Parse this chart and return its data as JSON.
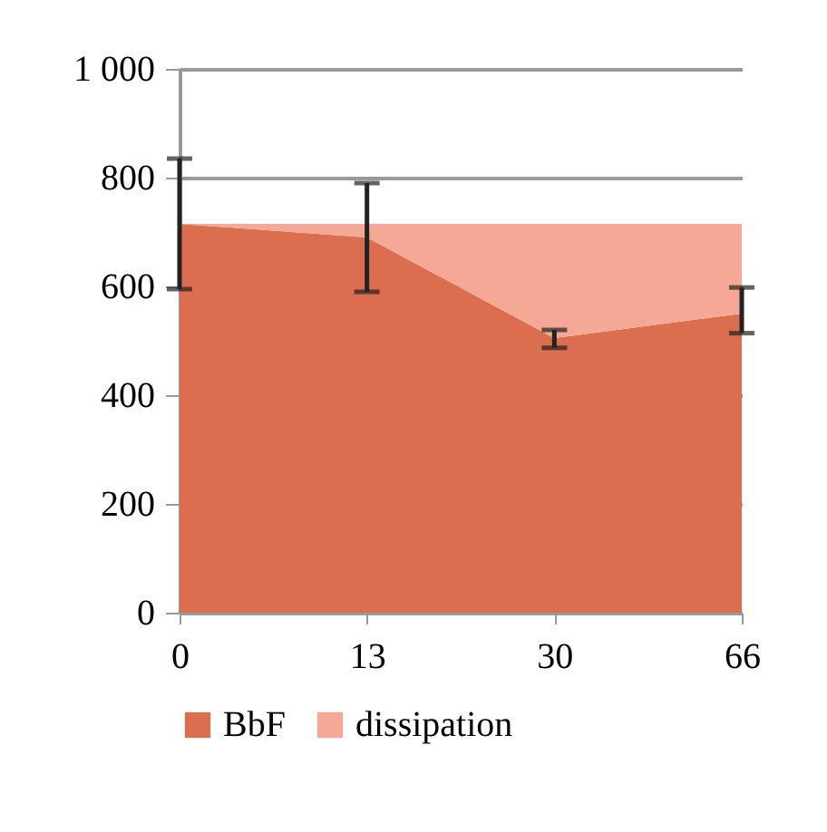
{
  "chart_data": {
    "type": "area",
    "stacked": true,
    "categories": [
      "0",
      "13",
      "30",
      "66"
    ],
    "series": [
      {
        "name": "BbF",
        "color": "#db6e4f",
        "values": [
          715,
          690,
          505,
          550
        ],
        "errors": [
          [
            595,
            835
          ],
          [
            590,
            790
          ],
          [
            487,
            520
          ],
          [
            514,
            598
          ]
        ]
      },
      {
        "name": "dissipation",
        "color": "#f5a895",
        "values": [
          0,
          25,
          210,
          165
        ]
      }
    ],
    "ylim": [
      0,
      1000
    ],
    "yticks": [
      0,
      200,
      400,
      600,
      800,
      {
        "value": 1000,
        "label": "1 000"
      }
    ],
    "grid": "y",
    "legend": "bottom"
  }
}
